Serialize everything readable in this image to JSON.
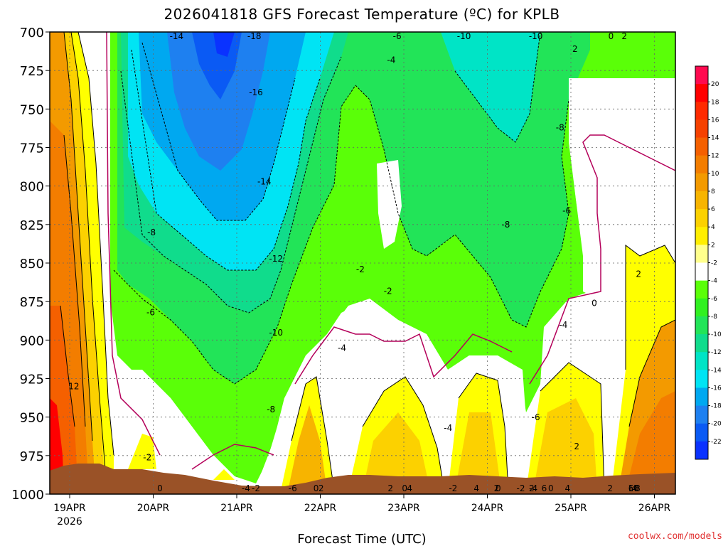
{
  "chart_data": {
    "type": "heatmap",
    "title": "2026041818 GFS Forecast Temperature (ºC) for KPLB",
    "xlabel": "Forecast Time (UTC)",
    "ylabel": "",
    "credit": "coolwx.com/models",
    "x_ticks": [
      "19APR",
      "20APR",
      "21APR",
      "22APR",
      "23APR",
      "24APR",
      "25APR",
      "26APR"
    ],
    "x_year": "2026",
    "y_ticks": [
      "700",
      "725",
      "750",
      "775",
      "800",
      "825",
      "850",
      "875",
      "900",
      "925",
      "950",
      "975",
      "1000"
    ],
    "ylim": [
      1000,
      700
    ],
    "xlim": [
      "19APR 00Z",
      "26APR 06Z"
    ],
    "grid": true,
    "colorbar": {
      "labels": [
        "20",
        "18",
        "16",
        "14",
        "12",
        "10",
        "8",
        "6",
        "4",
        "2",
        "-2",
        "-4",
        "-6",
        "-8",
        "-10",
        "-12",
        "-14",
        "-16",
        "-18",
        "-20",
        "-22"
      ],
      "colors": [
        "#ff0a4f",
        "#ff0000",
        "#ff2a00",
        "#f64100",
        "#f56000",
        "#f37d00",
        "#f39a00",
        "#f7b400",
        "#fcd100",
        "#ffee00",
        "#ffff8c",
        "#ffffff",
        "#5aff08",
        "#30f020",
        "#22e458",
        "#10dc8c",
        "#00e4c6",
        "#00e4f4",
        "#00a8f0",
        "#1e80f0",
        "#0a5af4",
        "#0a32ff"
      ]
    },
    "contour_labels": [
      {
        "text": "12",
        "day": 0.05,
        "p": 932
      },
      {
        "text": "-8",
        "day": 0.98,
        "p": 832
      },
      {
        "text": "-6",
        "day": 0.97,
        "p": 884
      },
      {
        "text": "-2",
        "day": 0.93,
        "p": 978
      },
      {
        "text": "0",
        "day": 1.08,
        "p": 1015
      },
      {
        "text": "-14",
        "day": 1.28,
        "p": 704
      },
      {
        "text": "-18",
        "day": 2.21,
        "p": 688
      },
      {
        "text": "-16",
        "day": 2.23,
        "p": 741
      },
      {
        "text": "-14",
        "day": 2.33,
        "p": 799
      },
      {
        "text": "-12",
        "day": 2.47,
        "p": 849
      },
      {
        "text": "-10",
        "day": 2.47,
        "p": 897
      },
      {
        "text": "-8",
        "day": 2.41,
        "p": 947
      },
      {
        "text": "-6",
        "day": 2.67,
        "p": 1007
      },
      {
        "text": "-4",
        "day": 2.11,
        "p": 1073
      },
      {
        "text": "-2",
        "day": 2.23,
        "p": 1144
      },
      {
        "text": "-2",
        "day": 3.48,
        "p": 856
      },
      {
        "text": "-4",
        "day": 3.26,
        "p": 907
      },
      {
        "text": "0",
        "day": 2.95,
        "p": 1050
      },
      {
        "text": "2",
        "day": 3.01,
        "p": 1095
      },
      {
        "text": "-6",
        "day": 3.92,
        "p": 622
      },
      {
        "text": "-4",
        "day": 3.85,
        "p": 720
      },
      {
        "text": "-2",
        "day": 3.81,
        "p": 870
      },
      {
        "text": "0",
        "day": 4.01,
        "p": 1004
      },
      {
        "text": "2",
        "day": 3.84,
        "p": 1065
      },
      {
        "text": "4",
        "day": 4.07,
        "p": 1123
      },
      {
        "text": "-10",
        "day": 4.72,
        "p": 607
      },
      {
        "text": "-8",
        "day": 5.22,
        "p": 827
      },
      {
        "text": "-4",
        "day": 4.53,
        "p": 959
      },
      {
        "text": "-2",
        "day": 4.59,
        "p": 1037
      },
      {
        "text": "0",
        "day": 5.13,
        "p": 1015
      },
      {
        "text": "2",
        "day": 5.11,
        "p": 1072
      },
      {
        "text": "4",
        "day": 4.87,
        "p": 1115
      },
      {
        "text": "-10",
        "day": 5.58,
        "p": 695
      },
      {
        "text": "-8",
        "day": 5.87,
        "p": 764
      },
      {
        "text": "-6",
        "day": 5.95,
        "p": 818
      },
      {
        "text": "-4",
        "day": 5.91,
        "p": 892
      },
      {
        "text": "-6",
        "day": 5.58,
        "p": 952
      },
      {
        "text": "-4",
        "day": 5.55,
        "p": 1044
      },
      {
        "text": "-2",
        "day": 5.4,
        "p": 1082
      },
      {
        "text": "0",
        "day": 5.76,
        "p": 1014
      },
      {
        "text": "2",
        "day": 5.53,
        "p": 1233
      },
      {
        "text": "6",
        "day": 5.68,
        "p": 1194
      },
      {
        "text": "4",
        "day": 5.96,
        "p": 1132
      },
      {
        "text": "2",
        "day": 6.05,
        "p": 713
      },
      {
        "text": "0",
        "day": 6.28,
        "p": 878
      },
      {
        "text": "2",
        "day": 6.07,
        "p": 971
      },
      {
        "text": "0",
        "day": 6.48,
        "p": 656
      },
      {
        "text": "2",
        "day": 6.64,
        "p": 642
      },
      {
        "text": "2",
        "day": 6.81,
        "p": 859
      },
      {
        "text": "4",
        "day": 6.76,
        "p": 1052
      },
      {
        "text": "2",
        "day": 6.47,
        "p": 1112
      },
      {
        "text": "8",
        "day": 6.8,
        "p": 1162
      },
      {
        "text": "6",
        "day": 6.72,
        "p": 1188
      },
      {
        "text": "10",
        "day": 6.75,
        "p": 1233
      }
    ]
  }
}
